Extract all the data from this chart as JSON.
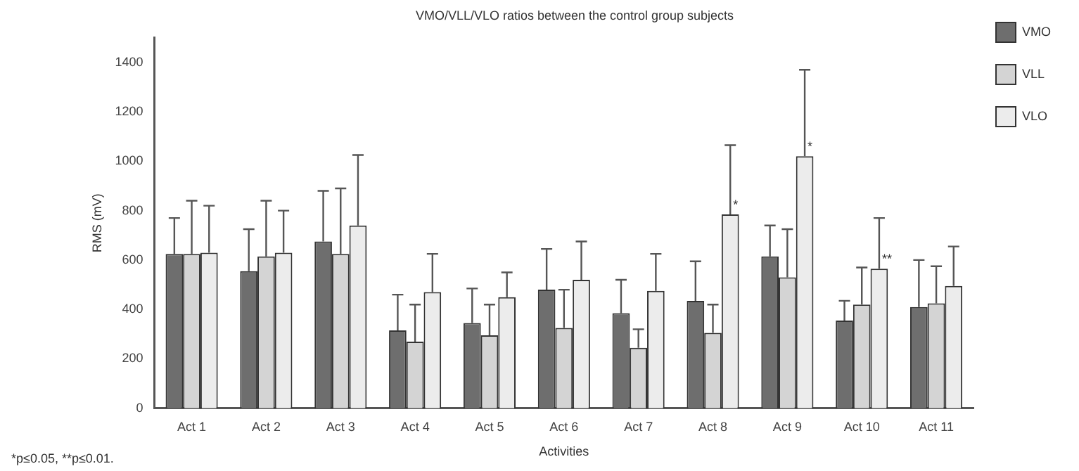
{
  "chart_data": {
    "type": "bar",
    "title": "VMO/VLL/VLO ratios between the control group subjects",
    "xlabel": "Activities",
    "ylabel": "RMS (mV)",
    "categories": [
      "Act 1",
      "Act 2",
      "Act 3",
      "Act 4",
      "Act 5",
      "Act 6",
      "Act 7",
      "Act 8",
      "Act 9",
      "Act 10",
      "Act 11"
    ],
    "series": [
      {
        "name": "VMO",
        "color": "#6e6e6e",
        "values": [
          625,
          555,
          675,
          315,
          345,
          480,
          385,
          435,
          615,
          355,
          410
        ],
        "errors": [
          [
            625,
            770
          ],
          [
            555,
            725
          ],
          [
            675,
            880
          ],
          [
            315,
            460
          ],
          [
            345,
            485
          ],
          [
            480,
            645
          ],
          [
            385,
            520
          ],
          [
            435,
            595
          ],
          [
            615,
            740
          ],
          [
            355,
            435
          ],
          [
            410,
            600
          ]
        ]
      },
      {
        "name": "VLL",
        "color": "#d4d4d4",
        "values": [
          625,
          615,
          625,
          270,
          295,
          325,
          245,
          305,
          530,
          420,
          425
        ],
        "errors": [
          [
            625,
            840
          ],
          [
            615,
            840
          ],
          [
            625,
            890
          ],
          [
            270,
            420
          ],
          [
            295,
            420
          ],
          [
            325,
            480
          ],
          [
            245,
            320
          ],
          [
            305,
            420
          ],
          [
            530,
            725
          ],
          [
            420,
            570
          ],
          [
            425,
            575
          ]
        ]
      },
      {
        "name": "VLO",
        "color": "#ececec",
        "values": [
          630,
          630,
          740,
          470,
          450,
          520,
          475,
          785,
          1020,
          565,
          495
        ],
        "value_labels": [
          null,
          null,
          null,
          null,
          null,
          null,
          null,
          "*",
          "*",
          "**",
          null
        ],
        "errors": [
          [
            630,
            820
          ],
          [
            630,
            800
          ],
          [
            740,
            1025
          ],
          [
            470,
            625
          ],
          [
            450,
            550
          ],
          [
            520,
            675
          ],
          [
            475,
            625
          ],
          [
            785,
            1065
          ],
          [
            1020,
            1370
          ],
          [
            565,
            770
          ],
          [
            495,
            655
          ]
        ]
      }
    ],
    "ylim": [
      0,
      1500
    ],
    "yticks": [
      0,
      200,
      400,
      600,
      800,
      1000,
      1200,
      1400
    ],
    "grid": false,
    "legend": "top right",
    "annotations": [
      "*p≤0.05, **p≤0.01."
    ]
  }
}
